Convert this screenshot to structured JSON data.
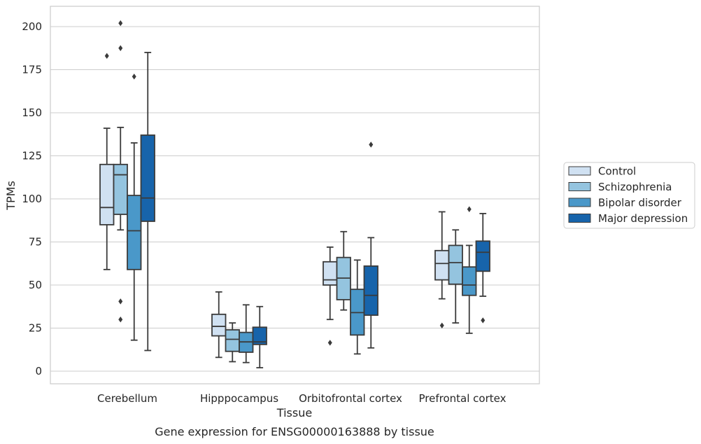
{
  "caption": "Gene expression for ENSG00000163888 by tissue",
  "chart_data": {
    "type": "box",
    "xlabel": "Tissue",
    "ylabel": "TPMs",
    "ylim": [
      -7,
      212
    ],
    "yticks": [
      0,
      25,
      50,
      75,
      100,
      125,
      150,
      175,
      200
    ],
    "grid": true,
    "legend_position": "right",
    "categories": [
      "Cerebellum",
      "Hipppocampus",
      "Orbitofrontal cortex",
      "Prefrontal cortex"
    ],
    "series": [
      {
        "name": "Control",
        "color": "#d0e1f2",
        "boxes": [
          {
            "whislo": 59,
            "q1": 85,
            "med": 95,
            "q3": 120,
            "whishi": 141,
            "fliers": [
              183
            ]
          },
          {
            "whislo": 8,
            "q1": 20.5,
            "med": 26,
            "q3": 33,
            "whishi": 46,
            "fliers": []
          },
          {
            "whislo": 30,
            "q1": 50,
            "med": 53,
            "q3": 63.5,
            "whishi": 72,
            "fliers": [
              16.5
            ]
          },
          {
            "whislo": 42,
            "q1": 53,
            "med": 62.5,
            "q3": 70,
            "whishi": 92.5,
            "fliers": [
              26.5
            ]
          }
        ]
      },
      {
        "name": "Schizophrenia",
        "color": "#94c4df",
        "boxes": [
          {
            "whislo": 82,
            "q1": 91,
            "med": 114,
            "q3": 120,
            "whishi": 141.5,
            "fliers": [
              202,
              187.5,
              40.5,
              30
            ]
          },
          {
            "whislo": 5.5,
            "q1": 11.5,
            "med": 18.5,
            "q3": 24,
            "whishi": 28,
            "fliers": []
          },
          {
            "whislo": 35.5,
            "q1": 41.5,
            "med": 54,
            "q3": 66,
            "whishi": 81,
            "fliers": []
          },
          {
            "whislo": 28,
            "q1": 50.5,
            "med": 63,
            "q3": 73,
            "whishi": 82,
            "fliers": []
          }
        ]
      },
      {
        "name": "Bipolar disorder",
        "color": "#4a98c9",
        "boxes": [
          {
            "whislo": 18,
            "q1": 59,
            "med": 81.5,
            "q3": 102,
            "whishi": 132.5,
            "fliers": [
              171
            ]
          },
          {
            "whislo": 5,
            "q1": 11,
            "med": 17,
            "q3": 22.5,
            "whishi": 38.5,
            "fliers": []
          },
          {
            "whislo": 10,
            "q1": 21,
            "med": 34,
            "q3": 47.5,
            "whishi": 64.5,
            "fliers": []
          },
          {
            "whislo": 22,
            "q1": 44,
            "med": 50,
            "q3": 60.5,
            "whishi": 73,
            "fliers": [
              94
            ]
          }
        ]
      },
      {
        "name": "Major depression",
        "color": "#1764ab",
        "boxes": [
          {
            "whislo": 12,
            "q1": 87,
            "med": 100.5,
            "q3": 137,
            "whishi": 185,
            "fliers": []
          },
          {
            "whislo": 2,
            "q1": 15.5,
            "med": 17,
            "q3": 25.5,
            "whishi": 37.5,
            "fliers": []
          },
          {
            "whislo": 13.5,
            "q1": 32.5,
            "med": 44,
            "q3": 61,
            "whishi": 77.5,
            "fliers": [
              131.5
            ]
          },
          {
            "whislo": 43.5,
            "q1": 58,
            "med": 69,
            "q3": 75.5,
            "whishi": 91.5,
            "fliers": [
              29.5
            ]
          }
        ]
      }
    ]
  }
}
